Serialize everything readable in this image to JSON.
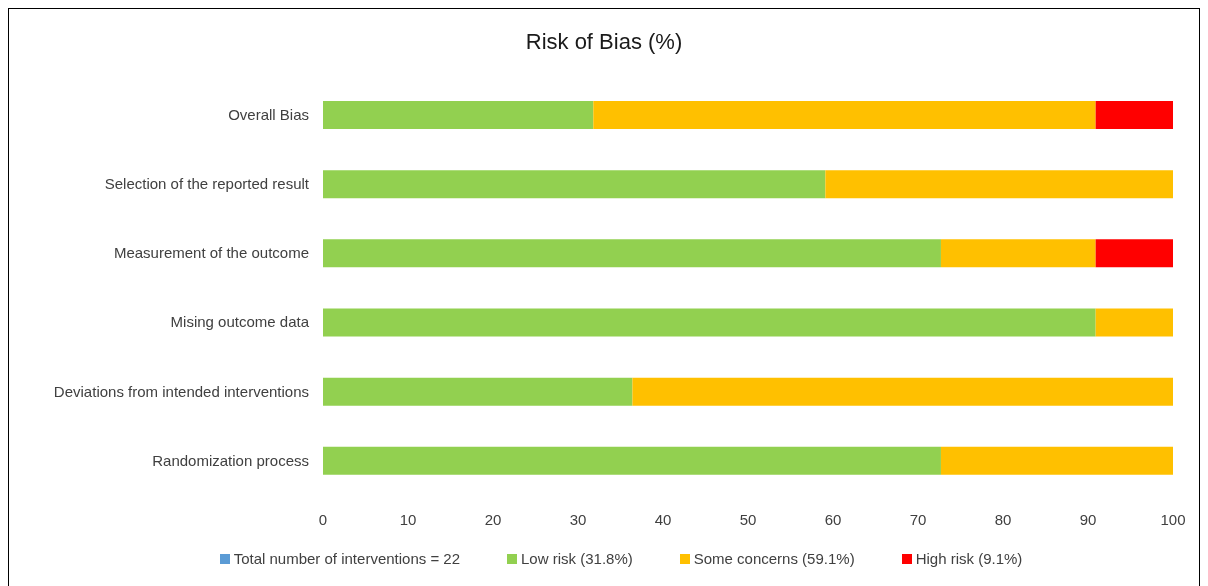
{
  "chart_data": {
    "type": "bar",
    "title": "Risk of Bias (%)",
    "orientation": "horizontal",
    "stacked": true,
    "categories": [
      "Overall Bias",
      "Selection of the reported result",
      "Measurement of the outcome",
      "Mising outcome data",
      "Deviations from intended interventions",
      "Randomization process"
    ],
    "series": [
      {
        "name": "Total number of interventions = 22",
        "color": "#5b9bd5",
        "values": [
          null,
          null,
          null,
          null,
          null,
          null
        ]
      },
      {
        "name": "Low risk (31.8%)",
        "color": "#92d050",
        "values": [
          31.8,
          59.1,
          72.7,
          90.9,
          36.4,
          72.7
        ]
      },
      {
        "name": "Some concerns (59.1%)",
        "color": "#ffc000",
        "values": [
          59.1,
          40.9,
          18.2,
          9.1,
          63.6,
          27.3
        ]
      },
      {
        "name": "High risk (9.1%)",
        "color": "#ff0000",
        "values": [
          9.1,
          0,
          9.1,
          0,
          0,
          0
        ]
      }
    ],
    "xlim": [
      0,
      100
    ],
    "xticks": [
      0,
      10,
      20,
      30,
      40,
      50,
      60,
      70,
      80,
      90,
      100
    ],
    "legend": "bottom"
  }
}
